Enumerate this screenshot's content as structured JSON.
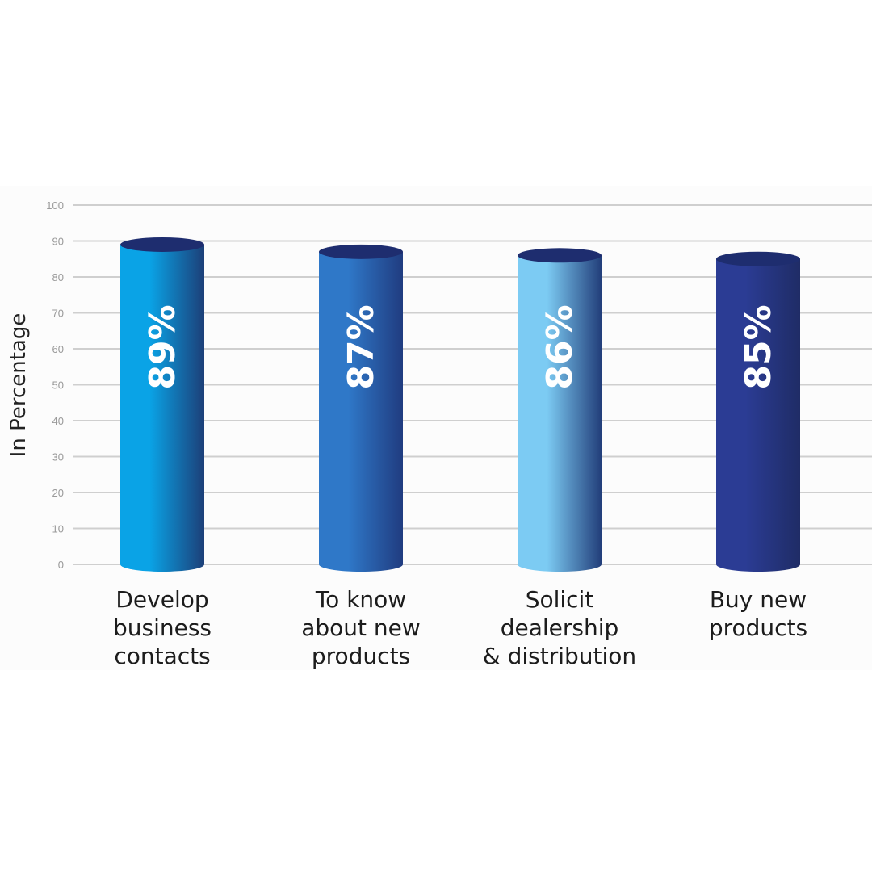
{
  "chart_data": {
    "type": "bar",
    "ylabel": "In Percentage",
    "ylim": [
      0,
      100
    ],
    "yticks": [
      0,
      10,
      20,
      30,
      40,
      50,
      60,
      70,
      80,
      90,
      100
    ],
    "grid": true,
    "categories": [
      [
        "Develop",
        "business",
        "contacts"
      ],
      [
        "To know",
        "about new",
        "products"
      ],
      [
        "Solicit",
        "dealership",
        "& distribution"
      ],
      [
        "Buy new",
        "products"
      ]
    ],
    "values": [
      89,
      87,
      86,
      85
    ],
    "data_labels": [
      "89%",
      "87%",
      "86%",
      "85%"
    ],
    "colors": [
      {
        "left": "#0aa3e6",
        "right": "#1c3f78",
        "top": "#1e2d6f"
      },
      {
        "left": "#2f78c8",
        "right": "#203c80",
        "top": "#1e2d6f"
      },
      {
        "left": "#7ccbf3",
        "right": "#223e7a",
        "top": "#1e2d6f"
      },
      {
        "left": "#2b3c94",
        "right": "#1f2c66",
        "top": "#1e2d6f"
      }
    ]
  }
}
